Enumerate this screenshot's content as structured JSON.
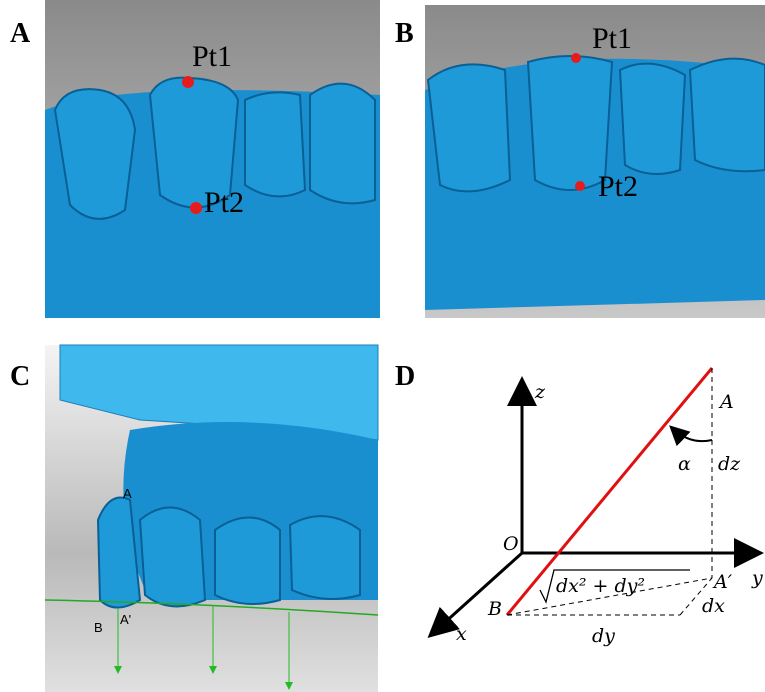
{
  "panels": {
    "a": {
      "label": "A",
      "pt1": "Pt1",
      "pt2": "Pt2"
    },
    "b": {
      "label": "B",
      "pt1": "Pt1",
      "pt2": "Pt2"
    },
    "c": {
      "label": "C",
      "point_a": "A",
      "point_b": "B",
      "point_a_prime": "A'"
    },
    "d": {
      "label": "D",
      "z": "z",
      "a": "A",
      "alpha": "α",
      "dz": "dz",
      "o": "O",
      "diag": "dx² + dy²",
      "a_prime": "A′",
      "y": "y",
      "b": "B",
      "x": "x",
      "dx": "dx",
      "dy": "dy"
    }
  }
}
